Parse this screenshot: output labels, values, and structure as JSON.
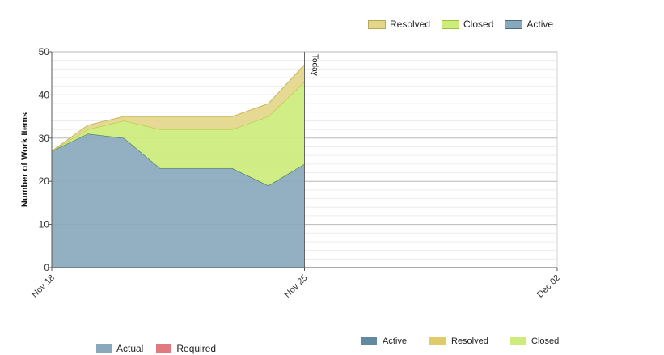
{
  "chart_data": {
    "type": "area",
    "stacked": true,
    "ylabel": "Number of Work Items",
    "ylim": [
      0,
      50
    ],
    "yticks": [
      0,
      10,
      20,
      30,
      40,
      50
    ],
    "xlim": [
      "2023-11-18",
      "2023-12-02"
    ],
    "xtick_labels": [
      "Nov 18",
      "Nov 25",
      "Dec 02"
    ],
    "x": [
      "2023-11-18",
      "2023-11-19",
      "2023-11-20",
      "2023-11-21",
      "2023-11-22",
      "2023-11-23",
      "2023-11-24",
      "2023-11-25"
    ],
    "series": [
      {
        "name": "Active",
        "color": "#8aa8bd",
        "line_color": "#3f6b55",
        "values": [
          27,
          31,
          30,
          23,
          23,
          23,
          19,
          24
        ]
      },
      {
        "name": "Closed",
        "color": "#cdec7b",
        "line_color": "#a8cc3c",
        "values": [
          0,
          1,
          4,
          9,
          9,
          9,
          16,
          19
        ]
      },
      {
        "name": "Resolved",
        "color": "#e3d68a",
        "line_color": "#c9b65a",
        "values": [
          0,
          1,
          1,
          3,
          3,
          3,
          3,
          4
        ]
      }
    ],
    "today_marker": {
      "x": "2023-11-25",
      "label": "Today"
    },
    "grid": true
  },
  "legend_top": [
    {
      "label": "Resolved",
      "color": "#e3d68a",
      "border": "#b8a858"
    },
    {
      "label": "Closed",
      "color": "#cdec7b",
      "border": "#9cc43a"
    },
    {
      "label": "Active",
      "color": "#8aa8bd",
      "border": "#4a6b80"
    }
  ],
  "legend_bottom_left": [
    {
      "label": "Actual",
      "color": "#8aa8bd"
    },
    {
      "label": "Required",
      "color": "#e07a80"
    }
  ],
  "legend_bottom_right": [
    {
      "label": "Active",
      "color": "#5f8aa0"
    },
    {
      "label": "Resolved",
      "color": "#e0cb6a"
    },
    {
      "label": "Closed",
      "color": "#cdec7b"
    }
  ]
}
